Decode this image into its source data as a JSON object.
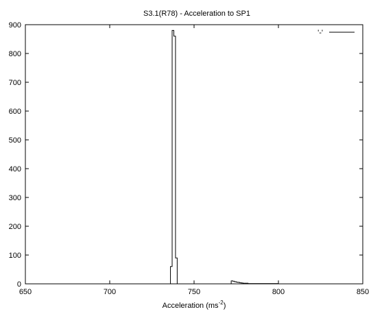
{
  "chart_data": {
    "type": "line",
    "title": "S3.1(R78) - Acceleration to SP1",
    "xlabel": {
      "prefix": "Acceleration (ms",
      "superscript": "-2",
      "suffix": ")"
    },
    "ylabel": "",
    "xlim": [
      650,
      850
    ],
    "ylim": [
      0,
      900
    ],
    "x_ticks": [
      650,
      700,
      750,
      800,
      850
    ],
    "x_tick_labels": [
      "650",
      "700",
      "750",
      "800",
      "850"
    ],
    "y_ticks": [
      0,
      100,
      200,
      300,
      400,
      500,
      600,
      700,
      800,
      900
    ],
    "y_tick_labels": [
      "0",
      "100",
      "200",
      "300",
      "400",
      "500",
      "600",
      "700",
      "800",
      "900"
    ],
    "grid": false,
    "legend_position": "top-right",
    "series": [
      {
        "name": "'-'",
        "style": "steps",
        "color": "#000000",
        "x": [
          735,
          736,
          737,
          738,
          739,
          740,
          741,
          772,
          773,
          774,
          775,
          776,
          777,
          778,
          779,
          780,
          782,
          785,
          790,
          800,
          850
        ],
        "y": [
          0,
          60,
          880,
          860,
          90,
          0,
          0,
          10,
          9,
          7,
          6,
          5,
          4,
          3,
          2,
          2,
          1,
          1,
          1,
          0,
          0
        ]
      }
    ]
  }
}
